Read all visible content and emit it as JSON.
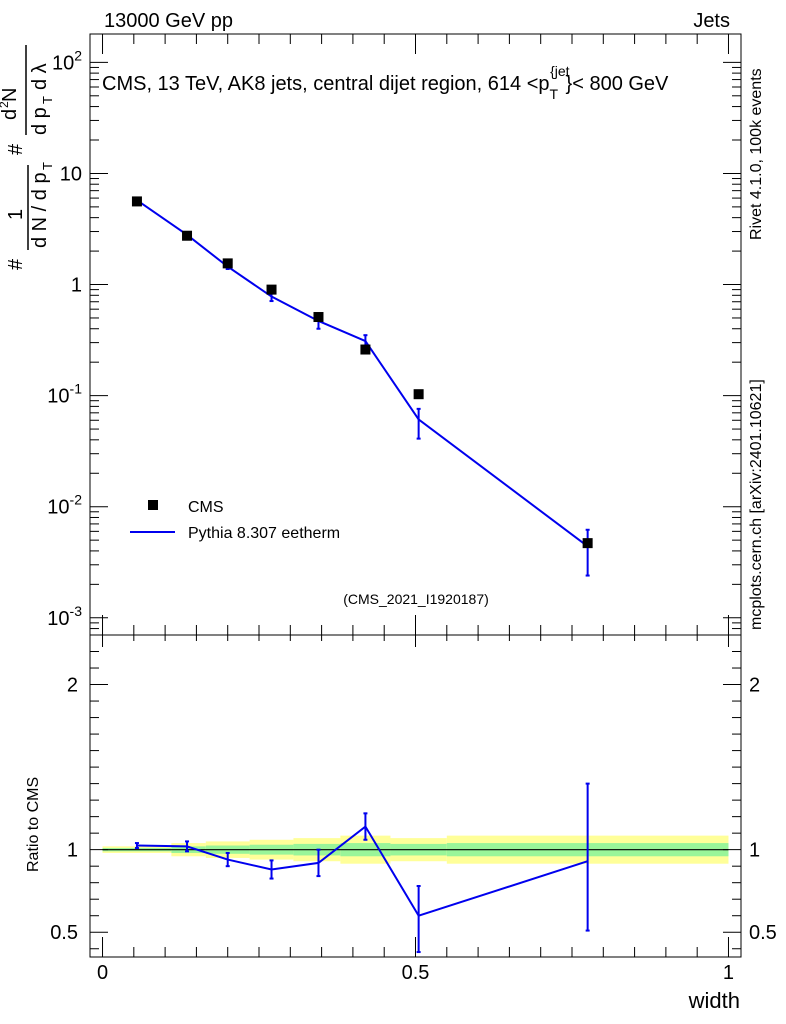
{
  "header": {
    "energy_label": "13000 GeV pp",
    "process_label": "Jets",
    "side_label_version": "Rivet 4.1.0,  100k events",
    "side_label_site": "mcplots.cern.ch [arXiv:2401.10621]"
  },
  "chart_data": [
    {
      "type": "scatter",
      "panel": "main",
      "title": "CMS, 13 TeV, AK8 jets, central dijet region, 614 <p_T^{jet}< 800 GeV",
      "ylabel": "1/dN/dp_T  d^2N/dp_T dλ",
      "yscale": "log",
      "ylim": [
        0.0007,
        180
      ],
      "xlim": [
        -0.02,
        1.02
      ],
      "y_tick_labels": [
        "10^-3",
        "10^-2",
        "10^-1",
        "1",
        "10",
        "10^2"
      ],
      "watermark": "(CMS_2021_I1920187)",
      "legend": [
        "CMS",
        "Pythia 8.307 eetherm"
      ],
      "x": [
        0.055,
        0.135,
        0.2,
        0.27,
        0.345,
        0.42,
        0.505,
        0.775
      ],
      "series": [
        {
          "name": "CMS",
          "values": [
            5.6,
            2.75,
            1.55,
            0.9,
            0.51,
            0.26,
            0.103,
            0.0047
          ]
        },
        {
          "name": "Pythia 8.307 eetherm",
          "values": [
            5.75,
            2.8,
            1.45,
            0.78,
            0.47,
            0.31,
            0.061,
            0.0044
          ],
          "err_low": [
            0.1,
            0.06,
            0.07,
            0.07,
            0.07,
            0.04,
            0.02,
            0.002
          ],
          "err_high": [
            0.1,
            0.06,
            0.07,
            0.07,
            0.07,
            0.04,
            0.015,
            0.0018
          ]
        }
      ]
    },
    {
      "type": "line",
      "panel": "ratio",
      "ylabel": "Ratio to CMS",
      "xlabel": "width",
      "ylim": [
        0.35,
        2.3
      ],
      "xlim": [
        -0.02,
        1.02
      ],
      "x_tick_labels": [
        "0",
        "0.5",
        "1"
      ],
      "y_tick_labels": [
        "0.5",
        "1",
        "2"
      ],
      "x": [
        0.055,
        0.135,
        0.2,
        0.27,
        0.345,
        0.42,
        0.505,
        0.775
      ],
      "series": [
        {
          "name": "Pythia 8.307 eetherm",
          "values": [
            1.025,
            1.02,
            0.94,
            0.88,
            0.92,
            1.14,
            0.6,
            0.93
          ],
          "err_low": [
            0.015,
            0.03,
            0.04,
            0.055,
            0.08,
            0.08,
            0.22,
            0.42
          ],
          "err_high": [
            0.015,
            0.03,
            0.04,
            0.055,
            0.08,
            0.08,
            0.18,
            0.47
          ]
        }
      ],
      "bands": {
        "edges": [
          0.0,
          0.11,
          0.165,
          0.235,
          0.305,
          0.38,
          0.46,
          0.55,
          1.0
        ],
        "inner_half": [
          0.01,
          0.02,
          0.025,
          0.03,
          0.035,
          0.04,
          0.035,
          0.04
        ],
        "outer_half": [
          0.02,
          0.04,
          0.05,
          0.06,
          0.07,
          0.085,
          0.07,
          0.085
        ]
      }
    }
  ],
  "colors": {
    "mc_line": "#0000ee",
    "band_inner": "#99f599",
    "band_outer": "#ffff99",
    "data_marker": "#000000",
    "watermark": "#888888",
    "side_label": "#777777"
  }
}
